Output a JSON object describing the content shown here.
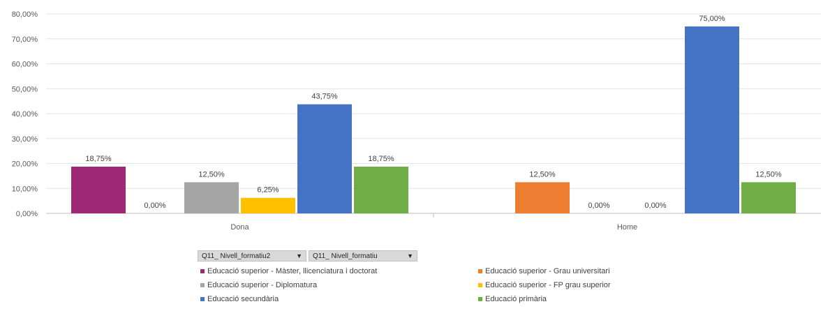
{
  "chart_data": {
    "type": "bar",
    "categories": [
      "Dona",
      "Home"
    ],
    "ylim": [
      0,
      80
    ],
    "yticks": [
      "0,00%",
      "10,00%",
      "20,00%",
      "30,00%",
      "40,00%",
      "50,00%",
      "60,00%",
      "70,00%",
      "80,00%"
    ],
    "series": [
      {
        "name": "Educació superior - Màster, llicenciatura i doctorat",
        "color": "#9e2a77",
        "values": [
          18.75,
          null
        ],
        "labels": [
          "18,75%",
          ""
        ]
      },
      {
        "name": "Educació superior - Grau universitari",
        "color": "#ed7d31",
        "values": [
          0,
          12.5
        ],
        "labels": [
          "0,00%",
          "12,50%"
        ]
      },
      {
        "name": "Educació superior - Diplomatura",
        "color": "#a5a5a5",
        "values": [
          12.5,
          0
        ],
        "labels": [
          "12,50%",
          "0,00%"
        ]
      },
      {
        "name": "Educació superior - FP grau superior",
        "color": "#ffc000",
        "values": [
          6.25,
          0
        ],
        "labels": [
          "6,25%",
          "0,00%"
        ]
      },
      {
        "name": "Educació secundària",
        "color": "#4472c4",
        "values": [
          43.75,
          75
        ],
        "labels": [
          "43,75%",
          "75,00%"
        ]
      },
      {
        "name": "Educació primària",
        "color": "#70ad47",
        "values": [
          18.75,
          12.5
        ],
        "labels": [
          "18,75%",
          "12,50%"
        ]
      }
    ],
    "grid": true,
    "legend_placement": "bottom"
  },
  "filters": [
    {
      "label": "Q11_ Nivell_formatiu2"
    },
    {
      "label": "Q11_ Nivell_formatiu"
    }
  ],
  "legend": [
    {
      "label": "Educació superior - Màster, llicenciatura i doctorat",
      "color": "#9e2a77"
    },
    {
      "label": "Educació superior - Grau universitari",
      "color": "#ed7d31"
    },
    {
      "label": "Educació superior - Diplomatura",
      "color": "#a5a5a5"
    },
    {
      "label": "Educació superior - FP grau superior",
      "color": "#ffc000"
    },
    {
      "label": "Educació secundària",
      "color": "#4472c4"
    },
    {
      "label": "Educació primària",
      "color": "#70ad47"
    }
  ]
}
